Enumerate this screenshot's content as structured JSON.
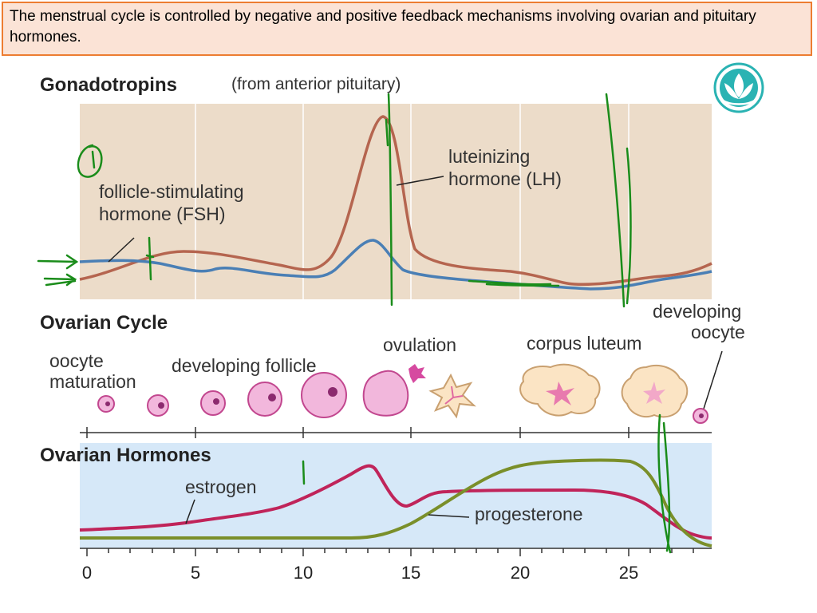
{
  "caption": "The menstrual cycle is controlled by negative and positive feedback mechanisms involving ovarian and pituitary hormones.",
  "gonadotropins": {
    "title": "Gonadotropins",
    "subtitle": "(from anterior pituitary)",
    "fsh_label_1": "follicle-stimulating",
    "fsh_label_2": "hormone (FSH)",
    "lh_label_1": "luteinizing",
    "lh_label_2": "hormone (LH)"
  },
  "ovarian_cycle": {
    "title": "Ovarian Cycle",
    "stage_oocyte_1": "oocyte",
    "stage_oocyte_2": "maturation",
    "stage_follicle": "developing follicle",
    "stage_ovulation": "ovulation",
    "stage_corpus": "corpus luteum",
    "stage_new_1": "developing",
    "stage_new_2": "oocyte"
  },
  "ovarian_hormones": {
    "title": "Ovarian Hormones",
    "estrogen_label": "estrogen",
    "progesterone_label": "progesterone"
  },
  "axis": {
    "ticks": [
      "0",
      "5",
      "10",
      "15",
      "20",
      "25"
    ]
  },
  "colors": {
    "lh": "#b5654f",
    "fsh": "#4a7fb5",
    "estrogen": "#c0245a",
    "progesterone": "#7a8f2a",
    "gonad_bg": "#ecdcc9",
    "hormone_bg": "#d6e8f8",
    "annotation": "#1a8c1a"
  }
}
